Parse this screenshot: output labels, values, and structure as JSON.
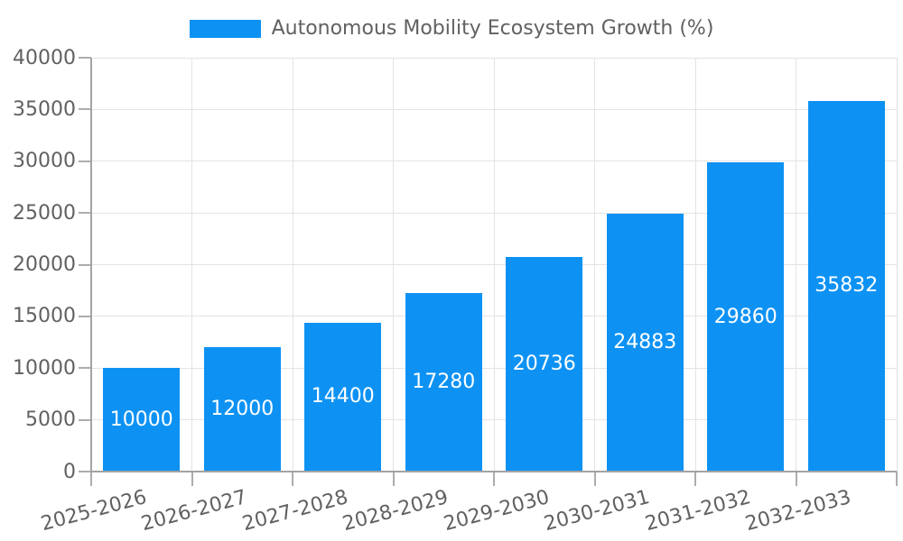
{
  "legend": {
    "label": "Autonomous Mobility Ecosystem Growth (%)"
  },
  "chart_data": {
    "type": "bar",
    "title": "Autonomous Mobility Ecosystem Growth (%)",
    "xlabel": "",
    "ylabel": "",
    "categories": [
      "2025-2026",
      "2026-2027",
      "2027-2028",
      "2028-2029",
      "2029-2030",
      "2030-2031",
      "2031-2032",
      "2032-2033"
    ],
    "values": [
      10000,
      12000,
      14400,
      17280,
      20736,
      24883,
      29860,
      35832
    ],
    "value_labels": [
      "10000",
      "12000",
      "14400",
      "17280",
      "20736",
      "24883",
      "29860",
      "35832"
    ],
    "ylim": [
      0,
      40000
    ],
    "yticks": [
      0,
      5000,
      10000,
      15000,
      20000,
      25000,
      30000,
      35000,
      40000
    ],
    "grid": true,
    "legend_position": "top-center",
    "x_label_rotation_deg": -15,
    "colors": {
      "bar": "#0D92F4",
      "value_label": "#FFFFFF",
      "grid": "#E3E3E3",
      "axis": "#A3A3A3",
      "tick": "#ADADAD",
      "tick_label": "#616161",
      "legend_label": "#616161",
      "background": "#FFFFFF"
    }
  }
}
